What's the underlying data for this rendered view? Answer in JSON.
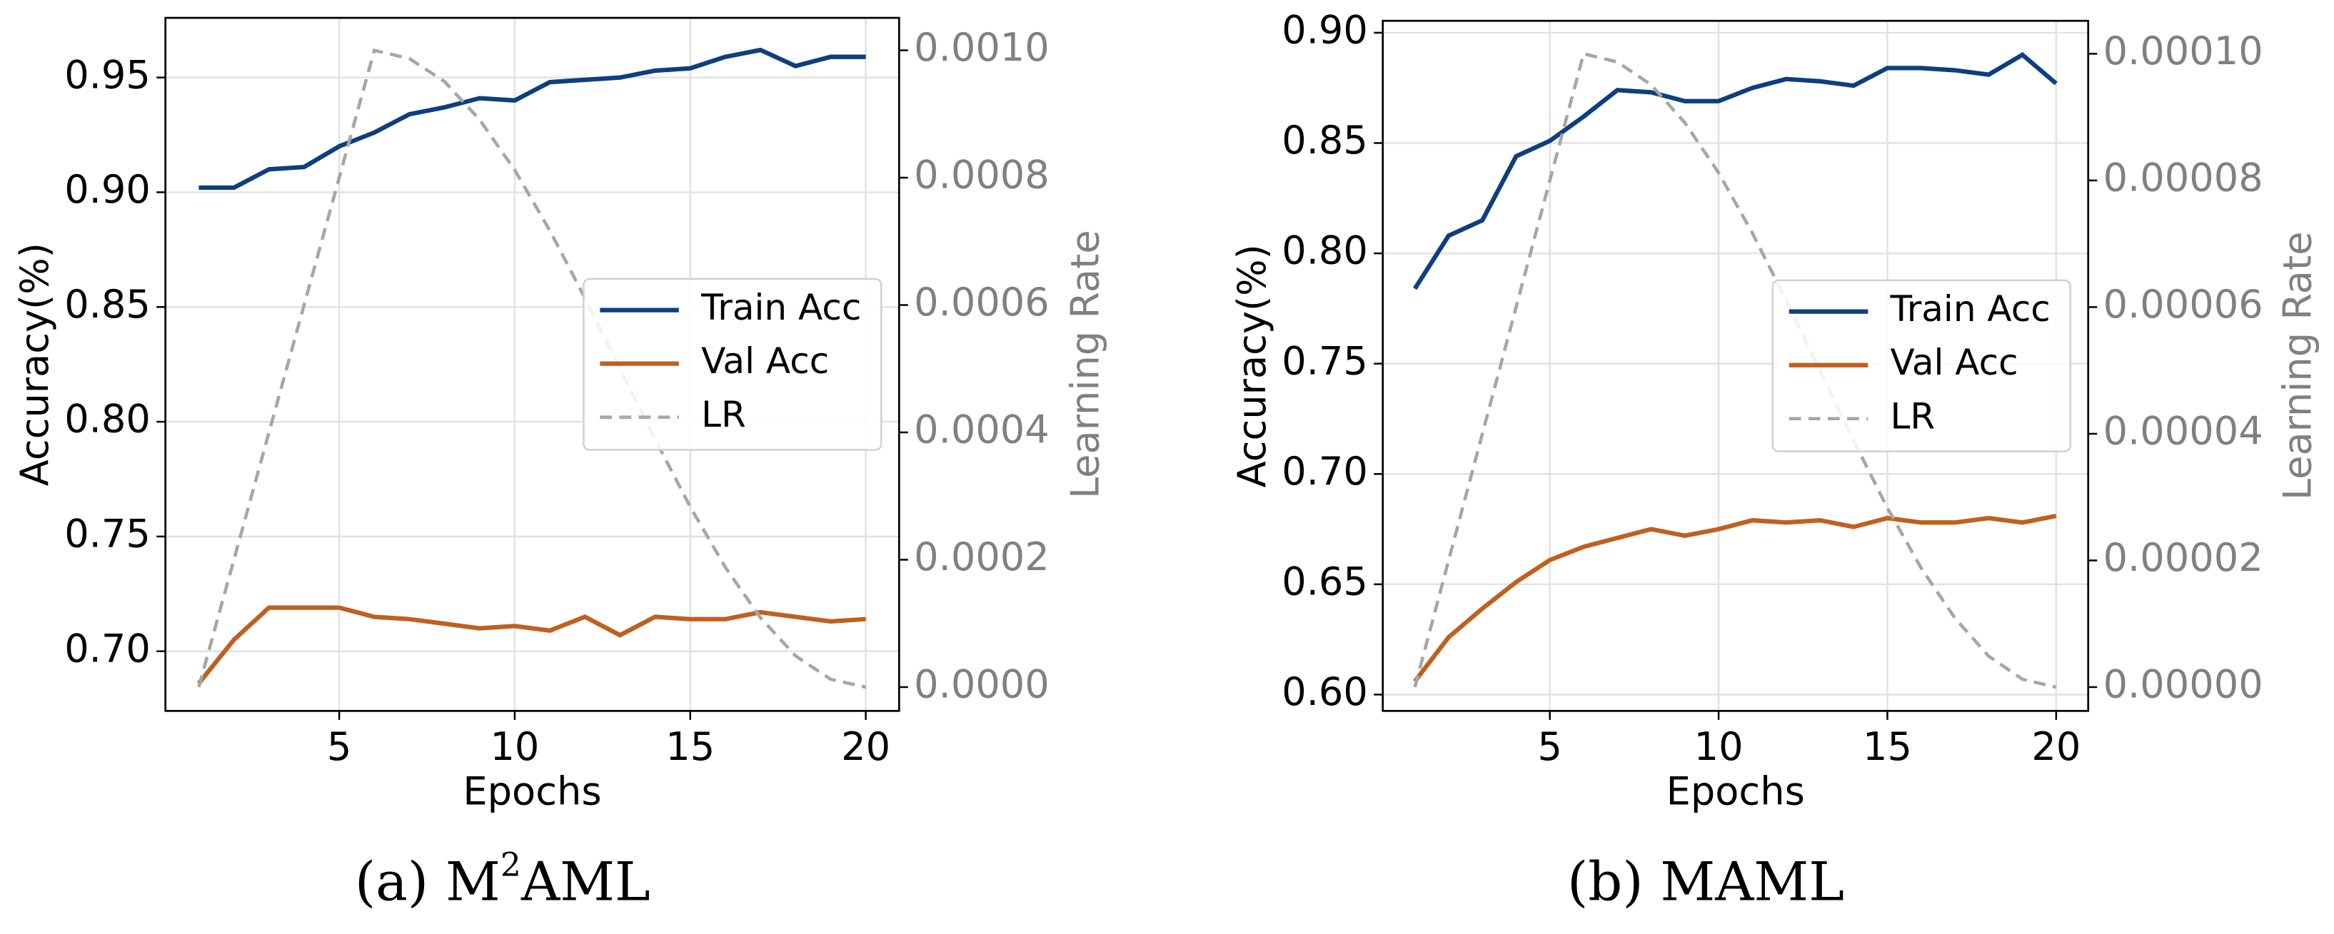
{
  "chart_data": [
    {
      "type": "line",
      "caption": [
        "(a) M",
        "2",
        "AML"
      ],
      "xlabel": "Epochs",
      "ylabel": "Accuracy(%)",
      "y2label": "Learning Rate",
      "x": [
        1,
        2,
        3,
        4,
        5,
        6,
        7,
        8,
        9,
        10,
        11,
        12,
        13,
        14,
        15,
        16,
        17,
        18,
        19,
        20
      ],
      "series": [
        {
          "name": "Train Acc",
          "color": "#0d3f80",
          "linestyle": "solid",
          "values": [
            0.902,
            0.902,
            0.91,
            0.911,
            0.92,
            0.926,
            0.934,
            0.937,
            0.941,
            0.94,
            0.948,
            0.949,
            0.95,
            0.953,
            0.954,
            0.959,
            0.962,
            0.955,
            0.959,
            0.959
          ]
        },
        {
          "name": "Val Acc",
          "color": "#c0601f",
          "linestyle": "solid",
          "values": [
            0.686,
            0.705,
            0.719,
            0.719,
            0.719,
            0.715,
            0.714,
            0.712,
            0.71,
            0.711,
            0.709,
            0.715,
            0.707,
            0.715,
            0.714,
            0.714,
            0.717,
            0.715,
            0.713,
            0.714
          ]
        },
        {
          "name": "LR",
          "color": "#a6a6a6",
          "linestyle": "dashed",
          "axis": "y2",
          "values": [
            0,
            0.0002,
            0.0004,
            0.0006,
            0.0008,
            0.001,
            0.000987,
            0.000951,
            0.000891,
            0.000812,
            0.000717,
            0.000611,
            0.0005,
            0.000389,
            0.000283,
            0.000188,
            0.000109,
            4.9e-05,
            1.23e-05,
            0
          ]
        }
      ],
      "xlim": [
        0.05,
        20.95
      ],
      "xticks": [
        5,
        10,
        15,
        20
      ],
      "ylim": [
        0.674,
        0.976
      ],
      "yticks": [
        {
          "value": 0.7,
          "label": "0.70"
        },
        0.75,
        {
          "value": 0.8,
          "label": "0.80"
        },
        0.85,
        {
          "value": 0.9,
          "label": "0.90"
        },
        0.95
      ],
      "y2lim": [
        -3.74e-05,
        0.001051
      ],
      "y2ticks": [
        {
          "value": 0,
          "label": "0.0000"
        },
        {
          "value": 0.0002,
          "label": "0.0002"
        },
        {
          "value": 0.0004,
          "label": "0.0004"
        },
        {
          "value": 0.0006,
          "label": "0.0006"
        },
        {
          "value": 0.0008,
          "label": "0.0008"
        },
        {
          "value": 0.001,
          "label": "0.0010"
        }
      ],
      "y2color": "#808080",
      "grid": true,
      "legend": "center right"
    },
    {
      "type": "line",
      "caption": [
        "(b) MAML"
      ],
      "xlabel": "Epochs",
      "ylabel": "Accuracy(%)",
      "y2label": "Learning Rate",
      "x": [
        1,
        2,
        3,
        4,
        5,
        6,
        7,
        8,
        9,
        10,
        11,
        12,
        13,
        14,
        15,
        16,
        17,
        18,
        19,
        20
      ],
      "series": [
        {
          "name": "Train Acc",
          "color": "#0d3f80",
          "linestyle": "solid",
          "values": [
            0.784,
            0.808,
            0.815,
            0.844,
            0.851,
            0.862,
            0.874,
            0.873,
            0.869,
            0.869,
            0.875,
            0.879,
            0.878,
            0.876,
            0.884,
            0.884,
            0.883,
            0.881,
            0.89,
            0.877
          ]
        },
        {
          "name": "Val Acc",
          "color": "#c0601f",
          "linestyle": "solid",
          "values": [
            0.606,
            0.626,
            0.639,
            0.651,
            0.661,
            0.667,
            0.671,
            0.675,
            0.672,
            0.675,
            0.679,
            0.678,
            0.679,
            0.676,
            0.68,
            0.678,
            0.678,
            0.68,
            0.678,
            0.681
          ]
        },
        {
          "name": "LR",
          "color": "#a6a6a6",
          "linestyle": "dashed",
          "axis": "y2",
          "values": [
            0,
            2e-05,
            4e-05,
            6e-05,
            8e-05,
            0.0001,
            9.87e-05,
            9.51e-05,
            8.91e-05,
            8.12e-05,
            7.17e-05,
            6.11e-05,
            5e-05,
            3.89e-05,
            2.83e-05,
            1.88e-05,
            1.09e-05,
            4.9e-06,
            1.23e-06,
            0
          ]
        }
      ],
      "xlim": [
        0.05,
        20.95
      ],
      "xticks": [
        5,
        10,
        15,
        20
      ],
      "ylim": [
        0.5926,
        0.9054
      ],
      "yticks": [
        {
          "value": 0.6,
          "label": "0.60"
        },
        0.65,
        {
          "value": 0.7,
          "label": "0.70"
        },
        0.75,
        {
          "value": 0.8,
          "label": "0.80"
        },
        0.85,
        {
          "value": 0.9,
          "label": "0.90"
        }
      ],
      "y2lim": [
        -3.76e-06,
        0.0001052
      ],
      "y2ticks": [
        {
          "value": 0,
          "label": "0.00000"
        },
        {
          "value": 2e-05,
          "label": "0.00002"
        },
        {
          "value": 4e-05,
          "label": "0.00004"
        },
        {
          "value": 6e-05,
          "label": "0.00006"
        },
        {
          "value": 8e-05,
          "label": "0.00008"
        },
        {
          "value": 0.0001,
          "label": "0.00010"
        }
      ],
      "y2color": "#808080",
      "grid": true,
      "legend": "center right"
    }
  ]
}
